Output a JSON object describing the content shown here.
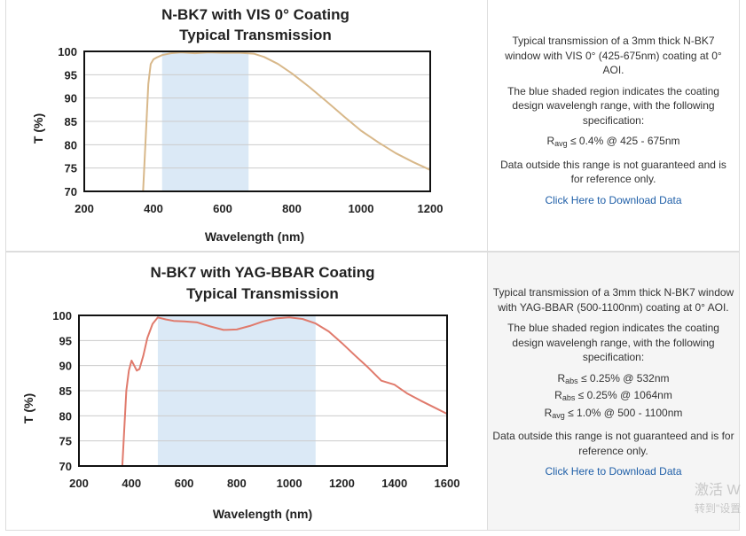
{
  "charts": [
    {
      "title_line1": "N-BK7 with VIS 0° Coating",
      "title_line2": "Typical Transmission",
      "description": "Typical transmission of a 3mm thick N-BK7 window with VIS 0° (425-675nm) coating at 0° AOI.",
      "shaded_note": "The blue shaded region indicates the coating design wavelengh range, with the following specification:",
      "specs": [
        {
          "sym": "R",
          "sub": "avg",
          "text": " ≤ 0.4% @ 425 - 675nm"
        }
      ],
      "disclaimer": "Data outside this range is not guaranteed and is for reference only.",
      "link": "Click Here to Download Data"
    },
    {
      "title_line1": "N-BK7 with YAG-BBAR Coating",
      "title_line2": "Typical Transmission",
      "description": "Typical transmission of a 3mm thick N-BK7 window with YAG-BBAR (500-1100nm) coating at 0° AOI.",
      "shaded_note": "The blue shaded region indicates the coating design wavelengh range, with the following specification:",
      "specs": [
        {
          "sym": "R",
          "sub": "abs",
          "text": " ≤ 0.25% @ 532nm"
        },
        {
          "sym": "R",
          "sub": "abs",
          "text": " ≤ 0.25% @ 1064nm"
        },
        {
          "sym": "R",
          "sub": "avg",
          "text": " ≤ 1.0% @ 500 - 1100nm"
        }
      ],
      "disclaimer": "Data outside this range is not guaranteed and is for reference only.",
      "link": "Click Here to Download Data"
    }
  ],
  "watermark": {
    "line1": "激活 W",
    "line2": "转到\"设置"
  },
  "chart_data": [
    {
      "type": "line",
      "title": "N-BK7 with VIS 0° Coating Typical Transmission",
      "xlabel": "Wavelength (nm)",
      "ylabel": "T (%)",
      "xlim": [
        200,
        1200
      ],
      "ylim": [
        70,
        100
      ],
      "xticks": [
        200,
        400,
        600,
        800,
        1000,
        1200
      ],
      "yticks": [
        70,
        75,
        80,
        85,
        90,
        95,
        100
      ],
      "grid": true,
      "shaded_band": [
        425,
        675
      ],
      "line_color": "#d8b88a",
      "band_color": "#dbe9f6",
      "series": [
        {
          "x": [
            370,
            378,
            385,
            392,
            400,
            410,
            425,
            450,
            480,
            520,
            560,
            600,
            650,
            690,
            720,
            760,
            800,
            850,
            900,
            950,
            1000,
            1050,
            1100,
            1150,
            1200
          ],
          "y": [
            70,
            82,
            93,
            97.3,
            98.3,
            98.7,
            99.2,
            99.6,
            99.8,
            99.6,
            99.8,
            99.7,
            99.7,
            99.5,
            98.8,
            97.3,
            95.3,
            92.4,
            89.3,
            86.1,
            83,
            80.5,
            78.2,
            76.3,
            74.6
          ]
        }
      ]
    },
    {
      "type": "line",
      "title": "N-BK7 with YAG-BBAR Coating Typical Transmission",
      "xlabel": "Wavelength (nm)",
      "ylabel": "T (%)",
      "xlim": [
        200,
        1600
      ],
      "ylim": [
        70,
        100
      ],
      "xticks": [
        200,
        400,
        600,
        800,
        1000,
        1200,
        1400,
        1600
      ],
      "yticks": [
        70,
        75,
        80,
        85,
        90,
        95,
        100
      ],
      "grid": true,
      "shaded_band": [
        500,
        1100
      ],
      "line_color": "#e07a6c",
      "band_color": "#dbe9f6",
      "series": [
        {
          "x": [
            365,
            372,
            380,
            390,
            400,
            410,
            420,
            430,
            445,
            460,
            480,
            500,
            530,
            560,
            600,
            650,
            700,
            750,
            800,
            850,
            900,
            950,
            1000,
            1050,
            1100,
            1150,
            1200,
            1250,
            1300,
            1350,
            1400,
            1450,
            1500,
            1550,
            1600
          ],
          "y": [
            70,
            77,
            85,
            89,
            91,
            90,
            89,
            89.3,
            92,
            95.5,
            98.3,
            99.6,
            99.2,
            98.9,
            98.8,
            98.6,
            97.8,
            97.1,
            97.2,
            97.9,
            98.8,
            99.4,
            99.6,
            99.3,
            98.4,
            96.8,
            94.5,
            92,
            89.6,
            87,
            86.2,
            84.4,
            83,
            81.7,
            80.4
          ]
        }
      ]
    }
  ]
}
